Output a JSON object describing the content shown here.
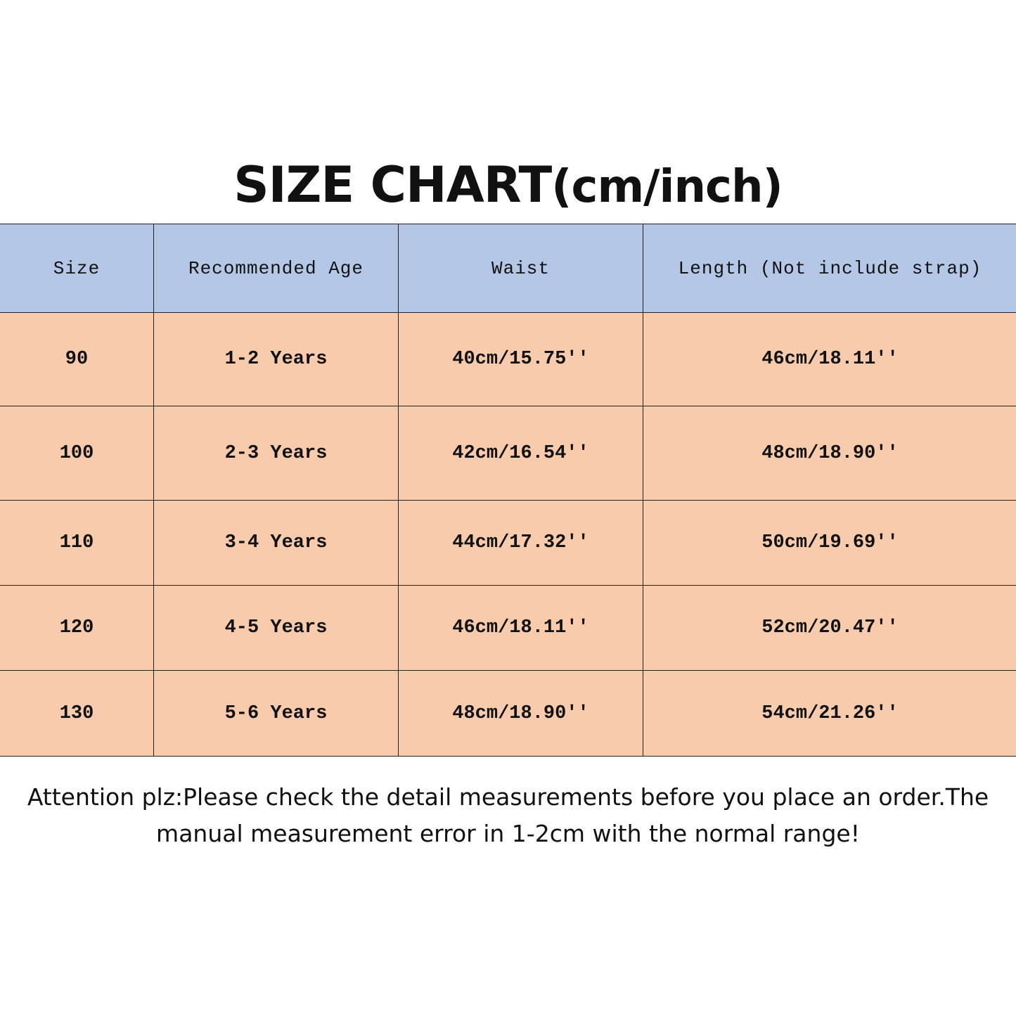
{
  "title": {
    "main": "SIZE CHART",
    "unit": "(cm/inch)"
  },
  "table": {
    "headers": [
      "Size",
      "Recommended Age",
      "Waist",
      "Length (Not include strap)"
    ],
    "rows": [
      [
        "90",
        "1-2 Years",
        "40cm/15.75''",
        "46cm/18.11''"
      ],
      [
        "100",
        "2-3 Years",
        "42cm/16.54''",
        "48cm/18.90''"
      ],
      [
        "110",
        "3-4 Years",
        "44cm/17.32''",
        "50cm/19.69''"
      ],
      [
        "120",
        "4-5 Years",
        "46cm/18.11''",
        "52cm/20.47''"
      ],
      [
        "130",
        "5-6 Years",
        "48cm/18.90''",
        "54cm/21.26''"
      ]
    ]
  },
  "note": {
    "line1": "Attention plz:Please check the detail measurements before you place an order.The",
    "line2": "manual measurement error in 1-2cm with the normal range!"
  },
  "colors": {
    "header_bg": "#b4c7e7",
    "row_bg": "#f8cbad"
  }
}
